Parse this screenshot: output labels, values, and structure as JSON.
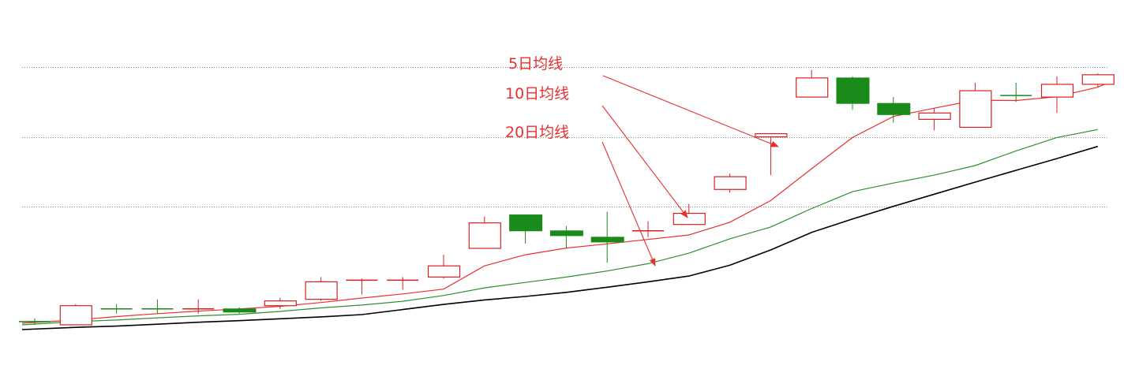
{
  "chart_data": {
    "type": "candlestick",
    "price_range": [
      0,
      100
    ],
    "grid": "horizontal dotted",
    "colors": {
      "up": "#d62020",
      "down": "#1a8a1a",
      "ma5": "#e83030",
      "ma10": "#2f8f2f",
      "ma20": "#000000",
      "annotation": "#e83030",
      "grid": "#8a8a8a"
    },
    "gridlines": [
      82,
      60,
      38
    ],
    "candles": [
      {
        "open": 2,
        "close": 2,
        "high": 3,
        "low": 1,
        "dir": "down"
      },
      {
        "open": 1,
        "close": 7,
        "high": 7.5,
        "low": 1,
        "dir": "up"
      },
      {
        "open": 6,
        "close": 6,
        "high": 7.5,
        "low": 4.5,
        "dir": "down"
      },
      {
        "open": 6,
        "close": 6,
        "high": 9,
        "low": 4.5,
        "dir": "down"
      },
      {
        "open": 6,
        "close": 6,
        "high": 9,
        "low": 4.5,
        "dir": "up"
      },
      {
        "open": 6,
        "close": 5,
        "high": 6.5,
        "low": 4.5,
        "dir": "down"
      },
      {
        "open": 7,
        "close": 8.5,
        "high": 9.5,
        "low": 6,
        "dir": "up"
      },
      {
        "open": 9,
        "close": 14.5,
        "high": 16,
        "low": 8.5,
        "dir": "up"
      },
      {
        "open": 15,
        "close": 15,
        "high": 15.5,
        "low": 10.5,
        "dir": "up"
      },
      {
        "open": 15,
        "close": 15,
        "high": 16,
        "low": 12,
        "dir": "up"
      },
      {
        "open": 16,
        "close": 19.5,
        "high": 23,
        "low": 15.5,
        "dir": "up"
      },
      {
        "open": 25,
        "close": 33,
        "high": 35,
        "low": 25,
        "dir": "up"
      },
      {
        "open": 35.5,
        "close": 30.5,
        "high": 35.5,
        "low": 26.5,
        "dir": "down"
      },
      {
        "open": 30.5,
        "close": 29,
        "high": 32,
        "low": 25,
        "dir": "down"
      },
      {
        "open": 28.5,
        "close": 27,
        "high": 36.5,
        "low": 20.5,
        "dir": "down"
      },
      {
        "open": 30.5,
        "close": 30.5,
        "high": 33.5,
        "low": 28.5,
        "dir": "up"
      },
      {
        "open": 32.5,
        "close": 36,
        "high": 39,
        "low": 32.5,
        "dir": "up"
      },
      {
        "open": 43.5,
        "close": 47.5,
        "high": 48.5,
        "low": 42.5,
        "dir": "up"
      },
      {
        "open": 60,
        "close": 61,
        "high": 61,
        "low": 48,
        "dir": "up"
      },
      {
        "open": 72.5,
        "close": 78.5,
        "high": 81,
        "low": 72.5,
        "dir": "up"
      },
      {
        "open": 78.5,
        "close": 70.5,
        "high": 79,
        "low": 68.5,
        "dir": "down"
      },
      {
        "open": 70.5,
        "close": 67,
        "high": 72.5,
        "low": 64.5,
        "dir": "down"
      },
      {
        "open": 65.5,
        "close": 67.5,
        "high": 69,
        "low": 62,
        "dir": "up"
      },
      {
        "open": 63,
        "close": 74.5,
        "high": 77,
        "low": 63,
        "dir": "up"
      },
      {
        "open": 73,
        "close": 73,
        "high": 77,
        "low": 71,
        "dir": "down"
      },
      {
        "open": 72.5,
        "close": 76.5,
        "high": 79,
        "low": 67.5,
        "dir": "up"
      },
      {
        "open": 76.5,
        "close": 79.5,
        "high": 80,
        "low": 75.5,
        "dir": "up"
      }
    ],
    "series": [
      {
        "key": "ma5",
        "values": [
          1.5,
          2.5,
          3.6,
          4.5,
          5.3,
          6,
          6.8,
          8,
          9.4,
          10.7,
          12.2,
          19.5,
          23,
          25.1,
          26.4,
          27.8,
          29.2,
          33.2,
          40,
          50,
          59.8,
          66.4,
          69,
          71.5,
          71.4,
          72.6,
          75.6
        ],
        "tail": 77
      },
      {
        "key": "ma10",
        "values": [
          1,
          2,
          2.5,
          3.2,
          3.8,
          4.3,
          5.2,
          6.3,
          7.2,
          8.4,
          10.2,
          12.6,
          14.3,
          16,
          17.9,
          20.2,
          23.5,
          28,
          31.7,
          37.5,
          42.8,
          45.5,
          48,
          51,
          55.6,
          59.8,
          62.3
        ]
      },
      {
        "key": "ma20",
        "values": [
          -0.5,
          0.2,
          0.6,
          1.2,
          1.8,
          2.3,
          2.9,
          3.5,
          4.2,
          5.8,
          7.4,
          8.8,
          9.9,
          11.2,
          12.8,
          14.5,
          16.3,
          19.7,
          24.5,
          30,
          34.2,
          38.2,
          42,
          45.8,
          49.5,
          53.2,
          57
        ]
      }
    ],
    "annotations": [
      {
        "text": "5日均线",
        "target": "ma5",
        "color": "#e83030"
      },
      {
        "text": "10日均线",
        "target": "ma10",
        "color": "#e83030"
      },
      {
        "text": "20日均线",
        "target": "ma20",
        "color": "#e83030"
      }
    ]
  }
}
